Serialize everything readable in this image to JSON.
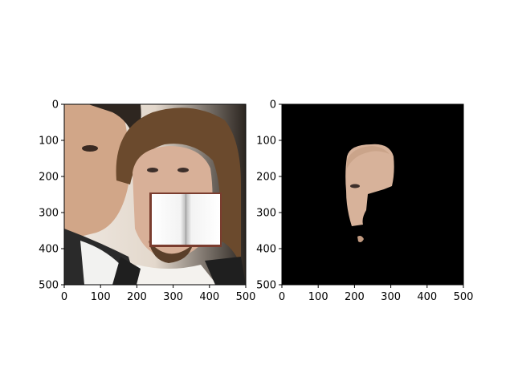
{
  "figure": {
    "panels": [
      {
        "id": "left",
        "content": "face photo with open book overlay",
        "colors": {
          "background": "#e9e6e2",
          "hair": "#6b4a2d",
          "skin": "#d8b098",
          "book": "#ffffff",
          "book_border": "#7a3c2e"
        }
      },
      {
        "id": "right",
        "content": "masked face region on black background",
        "colors": {
          "background": "#000000",
          "skin": "#d7b29a"
        }
      }
    ]
  },
  "chart_data": [
    {
      "type": "image",
      "title": "",
      "xlabel": "",
      "ylabel": "",
      "xlim": [
        0,
        500
      ],
      "ylim": [
        500,
        0
      ],
      "xticks": [
        "0",
        "100",
        "200",
        "300",
        "400",
        "500"
      ],
      "yticks": [
        "0",
        "100",
        "200",
        "300",
        "400",
        "500"
      ]
    },
    {
      "type": "image",
      "title": "",
      "xlabel": "",
      "ylabel": "",
      "xlim": [
        0,
        500
      ],
      "ylim": [
        500,
        0
      ],
      "xticks": [
        "0",
        "100",
        "200",
        "300",
        "400",
        "500"
      ],
      "yticks": [
        "0",
        "100",
        "200",
        "300",
        "400",
        "500"
      ]
    }
  ]
}
